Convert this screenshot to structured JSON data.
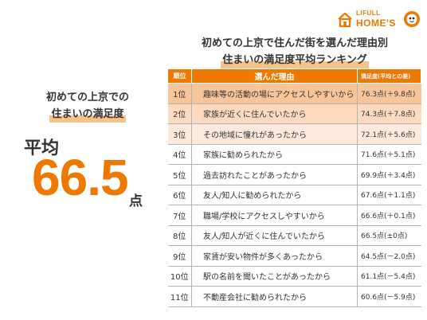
{
  "logo": {
    "small_text": "LIFULL",
    "big_text": "HOME'S",
    "house_icon": "house-icon",
    "mascot_icon": "mascot-icon",
    "brand_color": "#ee7800"
  },
  "title": {
    "line1": "初めての上京で住んだ街を選んだ理由別",
    "line2": "住まいの満足度平均ランキング"
  },
  "left_panel": {
    "heading_line1": "初めての上京での",
    "heading_line2": "住まいの満足度",
    "average_label": "平均",
    "average_value": "66.5",
    "average_unit": "点"
  },
  "table": {
    "headers": {
      "rank": "順位",
      "reason": "選んだ理由",
      "score": "満足度(平均との差)"
    },
    "header_color": "#ee7800",
    "highlight_colors": [
      "#f8c59a",
      "#fbdac0",
      "#fdeadc"
    ],
    "rows": [
      {
        "rank": "1位",
        "reason": "趣味等の活動の場にアクセスしやすいから",
        "score": "76.3点(＋9.8点)"
      },
      {
        "rank": "2位",
        "reason": "家族が近くに住んでいたから",
        "score": "74.3点(＋7.8点)"
      },
      {
        "rank": "3位",
        "reason": "その地域に憧れがあったから",
        "score": "72.1点(＋5.6点)"
      },
      {
        "rank": "4位",
        "reason": "家族に勧められたから",
        "score": "71.6点(＋5.1点)"
      },
      {
        "rank": "5位",
        "reason": "過去訪れたことがあったから",
        "score": "69.9点(＋3.4点)"
      },
      {
        "rank": "6位",
        "reason": "友人/知人に勧められたから",
        "score": "67.6点(＋1.1点)"
      },
      {
        "rank": "7位",
        "reason": "職場/学校にアクセスしやすいから",
        "score": "66.6点(＋0.1点)"
      },
      {
        "rank": "8位",
        "reason": "友人/知人が近くに住んでいたから",
        "score": "66.5点(±0点)"
      },
      {
        "rank": "9位",
        "reason": "家賃が安い物件が多くあったから",
        "score": "64.5点(－2.0点)"
      },
      {
        "rank": "10位",
        "reason": "駅の名前を聞いたことがあったから",
        "score": "61.1点(－5.4点)"
      },
      {
        "rank": "11位",
        "reason": "不動産会社に勧められたから",
        "score": "60.6点(－5.9点)"
      }
    ]
  }
}
